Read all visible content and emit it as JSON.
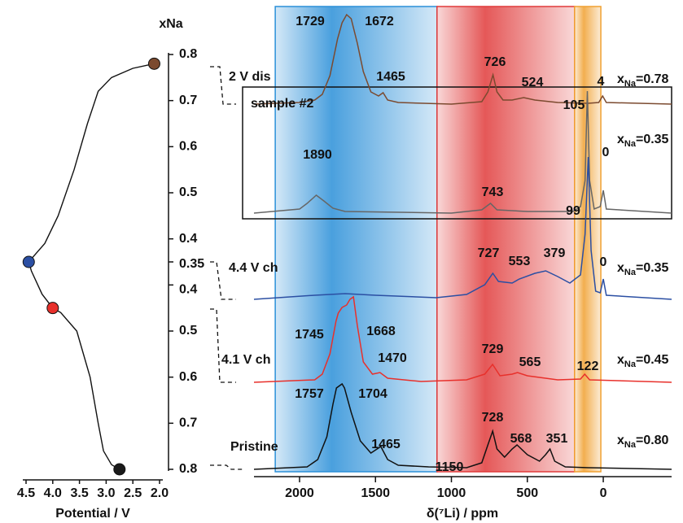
{
  "chart_data": [
    {
      "type": "line",
      "title": "xNa",
      "xlabel": "Potential / V",
      "xlim": [
        4.5,
        2.0
      ],
      "xticks": [
        4.5,
        {
          "value": 4,
          "label": "4.0"
        },
        3.5,
        {
          "value": 3,
          "label": "3.0"
        },
        2.5,
        {
          "value": 2,
          "label": "2.0"
        }
      ],
      "ylim": [
        0.8,
        0.35
      ],
      "yticks_upper": [
        0.8,
        0.7,
        0.6,
        0.5,
        0.4,
        0.35
      ],
      "yticks_lower": [
        0.4,
        0.5,
        0.6,
        0.7,
        0.8
      ],
      "charge": {
        "x": [
          2.75,
          2.9,
          3.05,
          3.15,
          3.3,
          3.55,
          3.85,
          4.0,
          4.2,
          4.4,
          4.45
        ],
        "values": [
          0.8,
          0.79,
          0.76,
          0.7,
          0.6,
          0.5,
          0.46,
          0.45,
          0.42,
          0.37,
          0.35
        ]
      },
      "discharge": {
        "x": [
          4.45,
          4.3,
          4.15,
          3.9,
          3.6,
          3.35,
          3.15,
          2.9,
          2.5,
          2.1
        ],
        "values": [
          0.35,
          0.37,
          0.39,
          0.45,
          0.55,
          0.65,
          0.72,
          0.75,
          0.77,
          0.78
        ]
      },
      "charge_points": [
        {
          "x": 2.75,
          "y": 0.8,
          "color": "#1a1a1a"
        },
        {
          "x": 4.0,
          "y": 0.45,
          "color": "#e8302b"
        }
      ],
      "discharge_points": [
        {
          "x": 4.45,
          "y": 0.35,
          "color": "#2b4fa3"
        },
        {
          "x": 2.1,
          "y": 0.78,
          "color": "#7b4a2f"
        }
      ],
      "line_color": "#111"
    },
    {
      "type": "spectra",
      "xlabel": "δ(⁷Li) / ppm",
      "xlim": [
        2300,
        -450
      ],
      "xticks": [
        2000,
        1500,
        1000,
        500,
        0
      ],
      "regions": [
        {
          "from": 2160,
          "to": 1095,
          "color": "#2a8fd8"
        },
        {
          "from": 1095,
          "to": 189,
          "color": "#e03a3a"
        },
        {
          "from": 189,
          "to": 16,
          "color": "#f0a030"
        }
      ],
      "series": [
        {
          "name": "2 V dis",
          "color": "#7b4a2f",
          "composition": [
            "x",
            "Na",
            "=0.78"
          ],
          "peaks": [
            1729,
            1672,
            1465,
            726,
            524,
            4
          ],
          "x": [
            2300,
            2000,
            1900,
            1850,
            1800,
            1750,
            1720,
            1690,
            1660,
            1620,
            1580,
            1530,
            1480,
            1450,
            1420,
            1350,
            1000,
            800,
            760,
            726,
            700,
            660,
            600,
            524,
            450,
            300,
            100,
            30,
            4,
            -20,
            -450
          ],
          "values": [
            0,
            2,
            5,
            12,
            35,
            80,
            100,
            110,
            105,
            75,
            40,
            15,
            10,
            14,
            5,
            2,
            0,
            3,
            15,
            36,
            15,
            5,
            5,
            8,
            5,
            2,
            1,
            2,
            10,
            2,
            0
          ]
        },
        {
          "name": "sample #2",
          "color": "#666666",
          "composition": [
            "x",
            "Na",
            "=0.35"
          ],
          "peaks": [
            1890,
            743,
            105,
            0
          ],
          "x": [
            2300,
            2000,
            1950,
            1890,
            1840,
            1780,
            1700,
            1000,
            800,
            743,
            700,
            500,
            200,
            150,
            120,
            105,
            90,
            60,
            20,
            0,
            -20,
            -450
          ],
          "values": [
            0,
            5,
            12,
            22,
            15,
            6,
            2,
            0,
            4,
            12,
            4,
            2,
            2,
            8,
            40,
            150,
            40,
            5,
            8,
            28,
            5,
            0
          ]
        },
        {
          "name": "4.4 V ch",
          "color": "#2b4fa3",
          "composition": [
            "x",
            "Na",
            "=0.35"
          ],
          "peaks": [
            727,
            553,
            379,
            99,
            0
          ],
          "x": [
            2300,
            1900,
            1700,
            1500,
            1100,
            900,
            780,
            727,
            690,
            600,
            553,
            450,
            379,
            300,
            220,
            150,
            120,
            99,
            80,
            50,
            20,
            0,
            -20,
            -450
          ],
          "values": [
            0,
            5,
            7,
            5,
            2,
            6,
            18,
            32,
            22,
            20,
            25,
            32,
            35,
            28,
            20,
            30,
            80,
            175,
            60,
            10,
            8,
            25,
            5,
            0
          ]
        },
        {
          "name": "4.1 V ch",
          "color": "#e8302b",
          "composition": [
            "x",
            "Na",
            "=0.45"
          ],
          "peaks": [
            1745,
            1668,
            1470,
            729,
            565,
            122
          ],
          "x": [
            2300,
            1900,
            1850,
            1800,
            1760,
            1745,
            1720,
            1690,
            1668,
            1645,
            1620,
            1580,
            1520,
            1470,
            1420,
            1200,
            900,
            780,
            729,
            680,
            600,
            565,
            500,
            300,
            150,
            122,
            90,
            -450
          ],
          "values": [
            0,
            3,
            10,
            35,
            75,
            85,
            92,
            95,
            102,
            105,
            70,
            25,
            10,
            12,
            5,
            1,
            3,
            10,
            22,
            8,
            10,
            12,
            8,
            3,
            4,
            10,
            3,
            0
          ]
        },
        {
          "name": "Pristine",
          "color": "#111111",
          "composition": [
            "x",
            "Na",
            "=0.80"
          ],
          "peaks": [
            1757,
            1704,
            1465,
            1150,
            728,
            568,
            351
          ],
          "x": [
            2300,
            1950,
            1880,
            1820,
            1780,
            1757,
            1720,
            1704,
            1660,
            1600,
            1530,
            1465,
            1420,
            1350,
            1150,
            900,
            800,
            760,
            728,
            700,
            650,
            600,
            568,
            500,
            420,
            380,
            351,
            320,
            250,
            100,
            -450
          ],
          "values": [
            0,
            3,
            12,
            40,
            80,
            100,
            105,
            100,
            70,
            35,
            20,
            28,
            12,
            5,
            3,
            2,
            8,
            30,
            47,
            25,
            15,
            25,
            30,
            18,
            10,
            18,
            25,
            10,
            3,
            2,
            0
          ]
        }
      ]
    }
  ]
}
